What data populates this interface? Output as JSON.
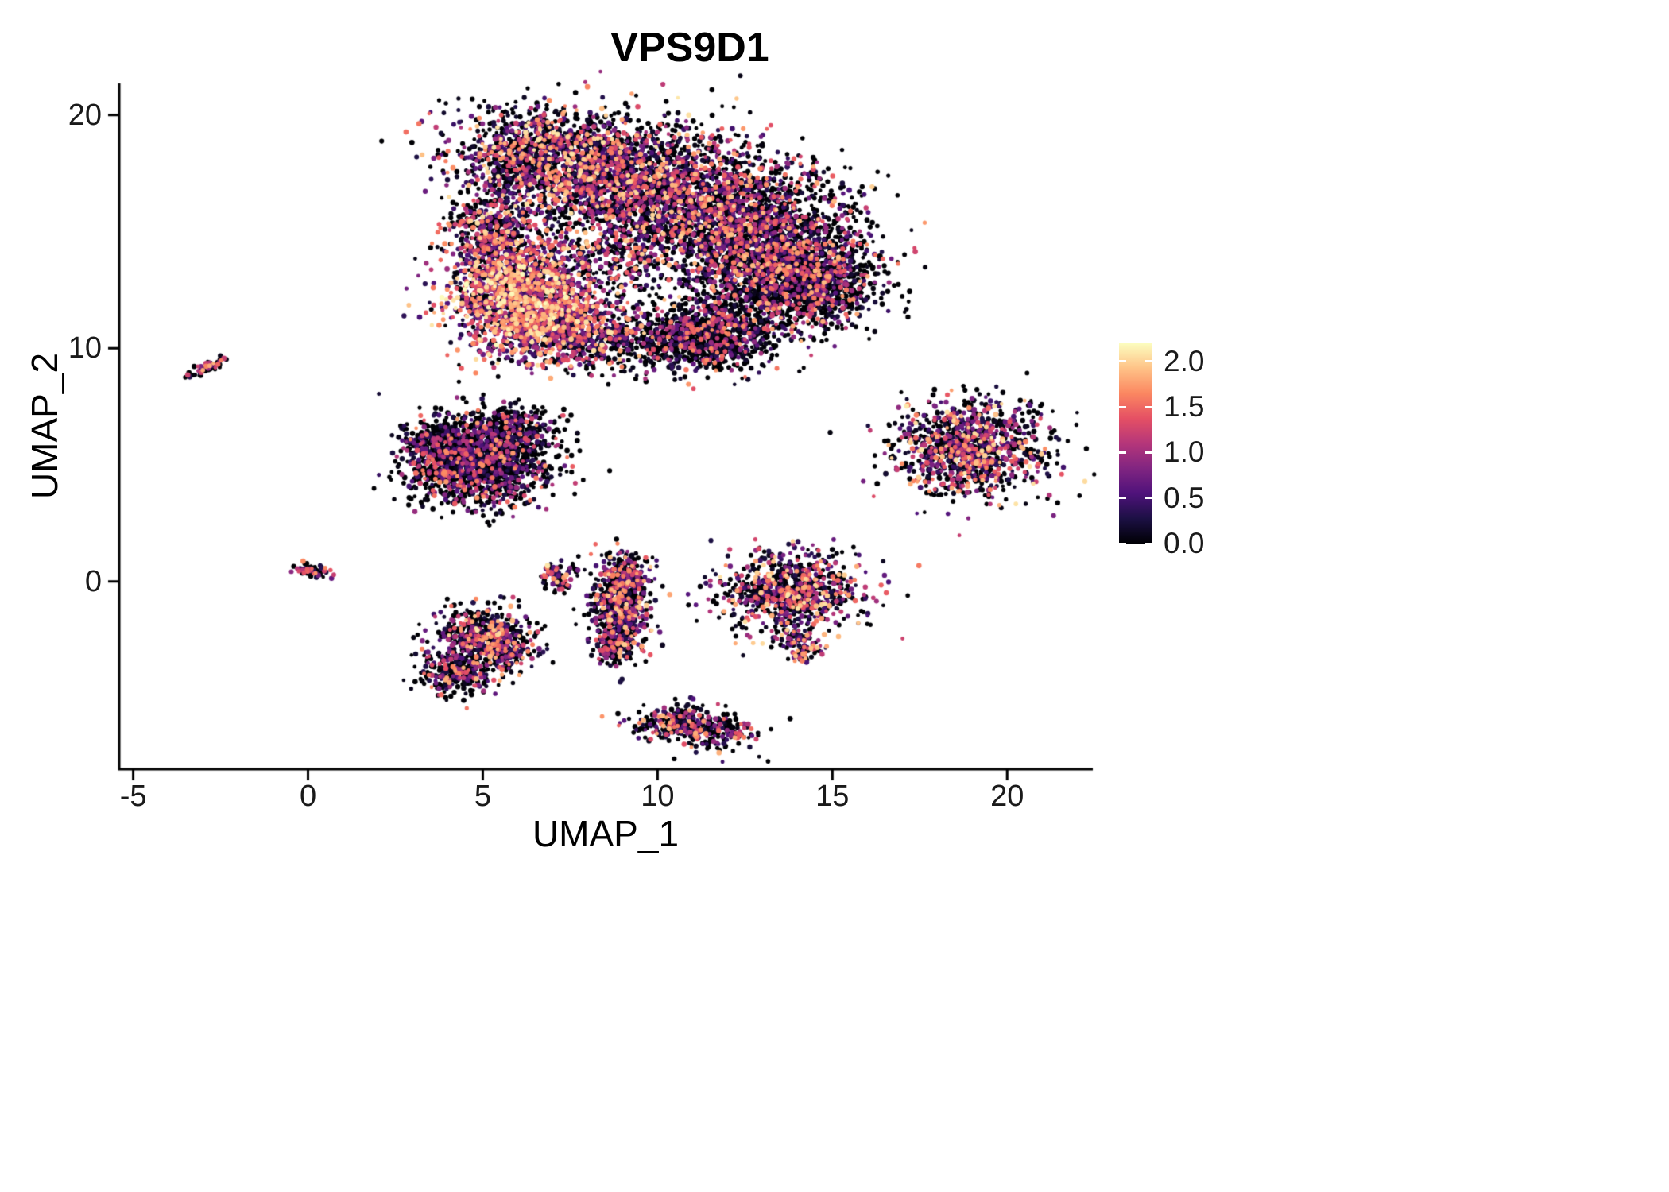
{
  "chart_data": {
    "type": "scatter",
    "title": "VPS9D1",
    "xlabel": "UMAP_1",
    "ylabel": "UMAP_2",
    "xlim": [
      -5.4,
      22.45
    ],
    "ylim": [
      -8.05,
      21.35
    ],
    "grid": false,
    "legend_position": "right",
    "x_ticks": [
      {
        "value": -5,
        "label": "-5"
      },
      {
        "value": 0,
        "label": "0"
      },
      {
        "value": 5,
        "label": "5"
      },
      {
        "value": 10,
        "label": "10"
      },
      {
        "value": 15,
        "label": "15"
      },
      {
        "value": 20,
        "label": "20"
      }
    ],
    "y_ticks": [
      {
        "value": 0,
        "label": "0"
      },
      {
        "value": 10,
        "label": "10"
      },
      {
        "value": 20,
        "label": "20"
      }
    ],
    "colorbar": {
      "vmin": 0.0,
      "vmax": 2.2,
      "ticks": [
        {
          "value": 2.0,
          "label": "2.0"
        },
        {
          "value": 1.5,
          "label": "1.5"
        },
        {
          "value": 1.0,
          "label": "1.0"
        },
        {
          "value": 0.5,
          "label": "0.5"
        },
        {
          "value": 0.0,
          "label": "0.0"
        }
      ]
    },
    "colormap": {
      "name": "magma",
      "stops": [
        [
          0.0,
          "#000004"
        ],
        [
          0.125,
          "#1c1044"
        ],
        [
          0.25,
          "#4f127b"
        ],
        [
          0.375,
          "#812581"
        ],
        [
          0.5,
          "#b5367a"
        ],
        [
          0.625,
          "#e55064"
        ],
        [
          0.75,
          "#fb8761"
        ],
        [
          0.875,
          "#fec287"
        ],
        [
          1.0,
          "#fcfdbf"
        ]
      ]
    },
    "point_count_approx": 17900,
    "random_seed": 42,
    "clusters": [
      {
        "name": "main-top-left",
        "cx": 6.8,
        "cy": 18.2,
        "sx": 1.35,
        "sy": 1.0,
        "rot": -8,
        "n": 1400,
        "zero": 0.3,
        "pow": 2.0,
        "vmax": 2.1
      },
      {
        "name": "main-top-mid",
        "cx": 9.6,
        "cy": 17.2,
        "sx": 1.6,
        "sy": 1.3,
        "rot": 0,
        "n": 1800,
        "zero": 0.3,
        "pow": 2.0,
        "vmax": 2.1
      },
      {
        "name": "main-right-upper",
        "cx": 12.4,
        "cy": 15.2,
        "sx": 1.5,
        "sy": 1.35,
        "rot": 20,
        "n": 2000,
        "zero": 0.36,
        "pow": 2.3,
        "vmax": 2.0
      },
      {
        "name": "main-right-lower",
        "cx": 14.0,
        "cy": 12.9,
        "sx": 1.15,
        "sy": 1.05,
        "rot": 0,
        "n": 1600,
        "zero": 0.4,
        "pow": 2.5,
        "vmax": 1.9
      },
      {
        "name": "main-left-hot",
        "cx": 6.0,
        "cy": 12.3,
        "sx": 0.95,
        "sy": 1.15,
        "rot": 0,
        "n": 1500,
        "zero": 0.1,
        "pow": 1.05,
        "vmax": 2.2
      },
      {
        "name": "main-bottom-left",
        "cx": 7.3,
        "cy": 10.8,
        "sx": 1.0,
        "sy": 0.7,
        "rot": 0,
        "n": 700,
        "zero": 0.18,
        "pow": 1.4,
        "vmax": 2.1
      },
      {
        "name": "main-bottom-mid",
        "cx": 9.8,
        "cy": 10.2,
        "sx": 1.2,
        "sy": 0.65,
        "rot": 0,
        "n": 450,
        "zero": 0.45,
        "pow": 2.4,
        "vmax": 1.8
      },
      {
        "name": "main-bottom-right",
        "cx": 11.7,
        "cy": 10.6,
        "sx": 0.9,
        "sy": 0.75,
        "rot": 0,
        "n": 800,
        "zero": 0.42,
        "pow": 2.6,
        "vmax": 1.8
      },
      {
        "name": "main-left-edge",
        "cx": 5.2,
        "cy": 14.9,
        "sx": 0.65,
        "sy": 0.9,
        "rot": 0,
        "n": 500,
        "zero": 0.28,
        "pow": 1.8,
        "vmax": 2.1
      },
      {
        "name": "main-center-sparse",
        "cx": 8.5,
        "cy": 13.9,
        "sx": 1.2,
        "sy": 1.2,
        "rot": 0,
        "n": 420,
        "zero": 0.35,
        "pow": 2.2,
        "vmax": 2.0
      },
      {
        "name": "streak-left",
        "cx": -2.88,
        "cy": 9.18,
        "sx": 0.3,
        "sy": 0.08,
        "rot": 33,
        "n": 65,
        "zero": 0.35,
        "pow": 2.0,
        "vmax": 1.9
      },
      {
        "name": "midleft-main",
        "cx": 4.9,
        "cy": 5.2,
        "sx": 1.0,
        "sy": 0.95,
        "rot": 0,
        "n": 1600,
        "zero": 0.45,
        "pow": 2.7,
        "vmax": 1.8
      },
      {
        "name": "midleft-top",
        "cx": 5.9,
        "cy": 6.7,
        "sx": 0.55,
        "sy": 0.45,
        "rot": 0,
        "n": 220,
        "zero": 0.45,
        "pow": 2.5,
        "vmax": 1.8
      },
      {
        "name": "midleft-west",
        "cx": 3.7,
        "cy": 5.7,
        "sx": 0.5,
        "sy": 0.6,
        "rot": 0,
        "n": 280,
        "zero": 0.45,
        "pow": 2.6,
        "vmax": 1.8
      },
      {
        "name": "right-cluster",
        "cx": 18.95,
        "cy": 5.75,
        "sx": 1.05,
        "sy": 1.05,
        "rot": 30,
        "n": 1150,
        "zero": 0.28,
        "pow": 1.7,
        "vmax": 2.1
      },
      {
        "name": "tiny-left",
        "cx": 0.15,
        "cy": 0.45,
        "sx": 0.28,
        "sy": 0.12,
        "rot": -15,
        "n": 70,
        "zero": 0.35,
        "pow": 1.8,
        "vmax": 1.9
      },
      {
        "name": "crescent-a",
        "cx": 7.0,
        "cy": 0.3,
        "sx": 0.18,
        "sy": 0.3,
        "rot": 0,
        "n": 55,
        "zero": 0.25,
        "pow": 1.4,
        "vmax": 2.1
      },
      {
        "name": "crescent-b",
        "cx": 7.3,
        "cy": -0.15,
        "sx": 0.15,
        "sy": 0.2,
        "rot": 0,
        "n": 30,
        "zero": 0.3,
        "pow": 1.6,
        "vmax": 2.0
      },
      {
        "name": "noise-a",
        "cx": 7.65,
        "cy": 0.55,
        "sx": 0.12,
        "sy": 0.18,
        "rot": 0,
        "n": 10,
        "zero": 0.4,
        "pow": 2.0,
        "vmax": 1.6
      },
      {
        "name": "vertical-main",
        "cx": 8.9,
        "cy": -1.3,
        "sx": 0.42,
        "sy": 1.0,
        "rot": 0,
        "n": 600,
        "zero": 0.34,
        "pow": 2.0,
        "vmax": 2.0
      },
      {
        "name": "vertical-top",
        "cx": 9.1,
        "cy": 0.3,
        "sx": 0.3,
        "sy": 0.45,
        "rot": 0,
        "n": 180,
        "zero": 0.34,
        "pow": 2.0,
        "vmax": 2.0
      },
      {
        "name": "vertical-bottom",
        "cx": 8.7,
        "cy": -2.9,
        "sx": 0.25,
        "sy": 0.3,
        "rot": 0,
        "n": 100,
        "zero": 0.38,
        "pow": 2.2,
        "vmax": 1.9
      },
      {
        "name": "lowerleft-main",
        "cx": 5.0,
        "cy": -2.3,
        "sx": 0.7,
        "sy": 0.6,
        "rot": 0,
        "n": 450,
        "zero": 0.35,
        "pow": 2.0,
        "vmax": 2.1
      },
      {
        "name": "lowerleft-south",
        "cx": 4.2,
        "cy": -3.9,
        "sx": 0.5,
        "sy": 0.5,
        "rot": 0,
        "n": 300,
        "zero": 0.4,
        "pow": 2.3,
        "vmax": 1.9
      },
      {
        "name": "lowerleft-mid",
        "cx": 5.6,
        "cy": -3.0,
        "sx": 0.4,
        "sy": 0.5,
        "rot": 0,
        "n": 200,
        "zero": 0.38,
        "pow": 2.2,
        "vmax": 1.9
      },
      {
        "name": "right-mid-cluster",
        "cx": 13.85,
        "cy": -0.45,
        "sx": 1.0,
        "sy": 0.85,
        "rot": 0,
        "n": 900,
        "zero": 0.3,
        "pow": 1.8,
        "vmax": 2.1
      },
      {
        "name": "hook-a",
        "cx": 13.85,
        "cy": -2.55,
        "sx": 0.2,
        "sy": 0.3,
        "rot": 0,
        "n": 50,
        "zero": 0.3,
        "pow": 1.7,
        "vmax": 2.0
      },
      {
        "name": "hook-b",
        "cx": 14.25,
        "cy": -3.05,
        "sx": 0.3,
        "sy": 0.18,
        "rot": 30,
        "n": 55,
        "zero": 0.3,
        "pow": 1.7,
        "vmax": 2.0
      },
      {
        "name": "bottom-cluster",
        "cx": 11.05,
        "cy": -6.25,
        "sx": 0.8,
        "sy": 0.42,
        "rot": -12,
        "n": 440,
        "zero": 0.36,
        "pow": 2.1,
        "vmax": 1.9
      }
    ]
  }
}
